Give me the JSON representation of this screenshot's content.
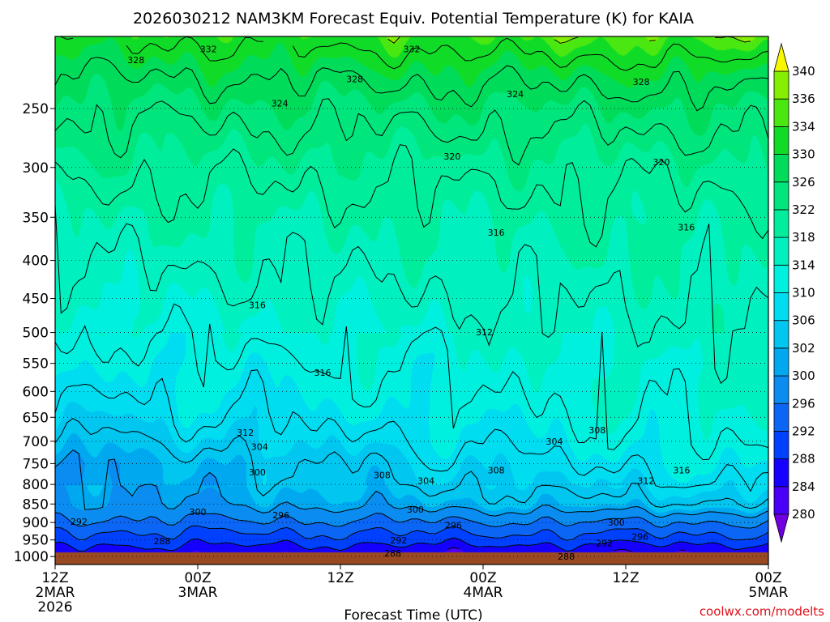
{
  "title": "2026030212 NAM3KM Forecast Equiv. Potential Temperature (K) for KAIA",
  "credit": "coolwx.com/modelts",
  "colors": {
    "ground": "#9a4a22",
    "palette": [
      "#7000e0",
      "#4a00f8",
      "#1500ff",
      "#0040ff",
      "#0b66f5",
      "#0a8cf0",
      "#00a8f0",
      "#00c6f0",
      "#00dcf0",
      "#00f0e0",
      "#00f0c0",
      "#00ee9c",
      "#00e67c",
      "#00dc5a",
      "#10dc28",
      "#4ae810",
      "#86ee00",
      "#c4f600",
      "#f6f700"
    ]
  },
  "chart_data": {
    "type": "heatmap",
    "title": "2026030212 NAM3KM Forecast Equiv. Potential Temperature (K) for KAIA",
    "xlabel": "Forecast Time (UTC)",
    "ylabel": "",
    "x_ticks": [
      {
        "hour": 0,
        "lines": [
          "12Z",
          "2MAR",
          "2026"
        ]
      },
      {
        "hour": 12,
        "lines": [
          "00Z",
          "3MAR"
        ]
      },
      {
        "hour": 24,
        "lines": [
          "12Z"
        ]
      },
      {
        "hour": 36,
        "lines": [
          "00Z",
          "4MAR"
        ]
      },
      {
        "hour": 48,
        "lines": [
          "12Z"
        ]
      },
      {
        "hour": 60,
        "lines": [
          "00Z",
          "5MAR"
        ]
      }
    ],
    "xlim": [
      0,
      60
    ],
    "y_ticks": [
      "250",
      "300",
      "350",
      "400",
      "450",
      "500",
      "550",
      "600",
      "650",
      "700",
      "750",
      "800",
      "850",
      "900",
      "950",
      "1000"
    ],
    "ylim": [
      200,
      1025
    ],
    "y_scale": "log-pressure",
    "surface_pressure_hpa": 985,
    "colorbar": {
      "levels": [
        280,
        284,
        288,
        292,
        296,
        300,
        302,
        306,
        310,
        314,
        318,
        322,
        326,
        330,
        334,
        336,
        340
      ],
      "extend": "both"
    },
    "theta_e_profile": {
      "pressure_hpa": [
        1000,
        975,
        950,
        925,
        900,
        875,
        850,
        800,
        750,
        700,
        650,
        600,
        550,
        500,
        450,
        400,
        350,
        300,
        250,
        225,
        200
      ],
      "hour_0": [
        285,
        287,
        290,
        292,
        295,
        297,
        299,
        300,
        300,
        303,
        306,
        308,
        310,
        312,
        314,
        316,
        318,
        321,
        325,
        328,
        332
      ],
      "hour_60": [
        283,
        286,
        290,
        293,
        296,
        300,
        304,
        308,
        311,
        313,
        314,
        315,
        315,
        316,
        317,
        318,
        319,
        321,
        326,
        330,
        336
      ]
    },
    "contour_labels": [
      {
        "text": "328",
        "hour": 6.8,
        "p": 215
      },
      {
        "text": "332",
        "hour": 12.9,
        "p": 208
      },
      {
        "text": "332",
        "hour": 30.0,
        "p": 208
      },
      {
        "text": "328",
        "hour": 25.2,
        "p": 228
      },
      {
        "text": "324",
        "hour": 18.9,
        "p": 246
      },
      {
        "text": "324",
        "hour": 38.7,
        "p": 239
      },
      {
        "text": "328",
        "hour": 49.3,
        "p": 230
      },
      {
        "text": "320",
        "hour": 33.4,
        "p": 290
      },
      {
        "text": "320",
        "hour": 51.0,
        "p": 295
      },
      {
        "text": "316",
        "hour": 37.1,
        "p": 367
      },
      {
        "text": "316",
        "hour": 53.1,
        "p": 361
      },
      {
        "text": "316",
        "hour": 17.0,
        "p": 459
      },
      {
        "text": "312",
        "hour": 36.1,
        "p": 499
      },
      {
        "text": "316",
        "hour": 22.5,
        "p": 566
      },
      {
        "text": "312",
        "hour": 16.0,
        "p": 681
      },
      {
        "text": "308",
        "hour": 45.6,
        "p": 676
      },
      {
        "text": "304",
        "hour": 17.2,
        "p": 712
      },
      {
        "text": "304",
        "hour": 42.0,
        "p": 700
      },
      {
        "text": "300",
        "hour": 17.0,
        "p": 770
      },
      {
        "text": "308",
        "hour": 27.5,
        "p": 777
      },
      {
        "text": "304",
        "hour": 31.2,
        "p": 791
      },
      {
        "text": "308",
        "hour": 37.1,
        "p": 765
      },
      {
        "text": "316",
        "hour": 52.7,
        "p": 765
      },
      {
        "text": "312",
        "hour": 49.7,
        "p": 791
      },
      {
        "text": "300",
        "hour": 12.0,
        "p": 871
      },
      {
        "text": "296",
        "hour": 19.0,
        "p": 880
      },
      {
        "text": "300",
        "hour": 30.3,
        "p": 864
      },
      {
        "text": "296",
        "hour": 33.5,
        "p": 908
      },
      {
        "text": "300",
        "hour": 47.2,
        "p": 900
      },
      {
        "text": "292",
        "hour": 2.0,
        "p": 897
      },
      {
        "text": "288",
        "hour": 9.0,
        "p": 953
      },
      {
        "text": "292",
        "hour": 28.9,
        "p": 951
      },
      {
        "text": "288",
        "hour": 28.4,
        "p": 990
      },
      {
        "text": "296",
        "hour": 49.2,
        "p": 940
      },
      {
        "text": "292",
        "hour": 46.2,
        "p": 959
      },
      {
        "text": "288",
        "hour": 43.0,
        "p": 1000
      }
    ]
  }
}
